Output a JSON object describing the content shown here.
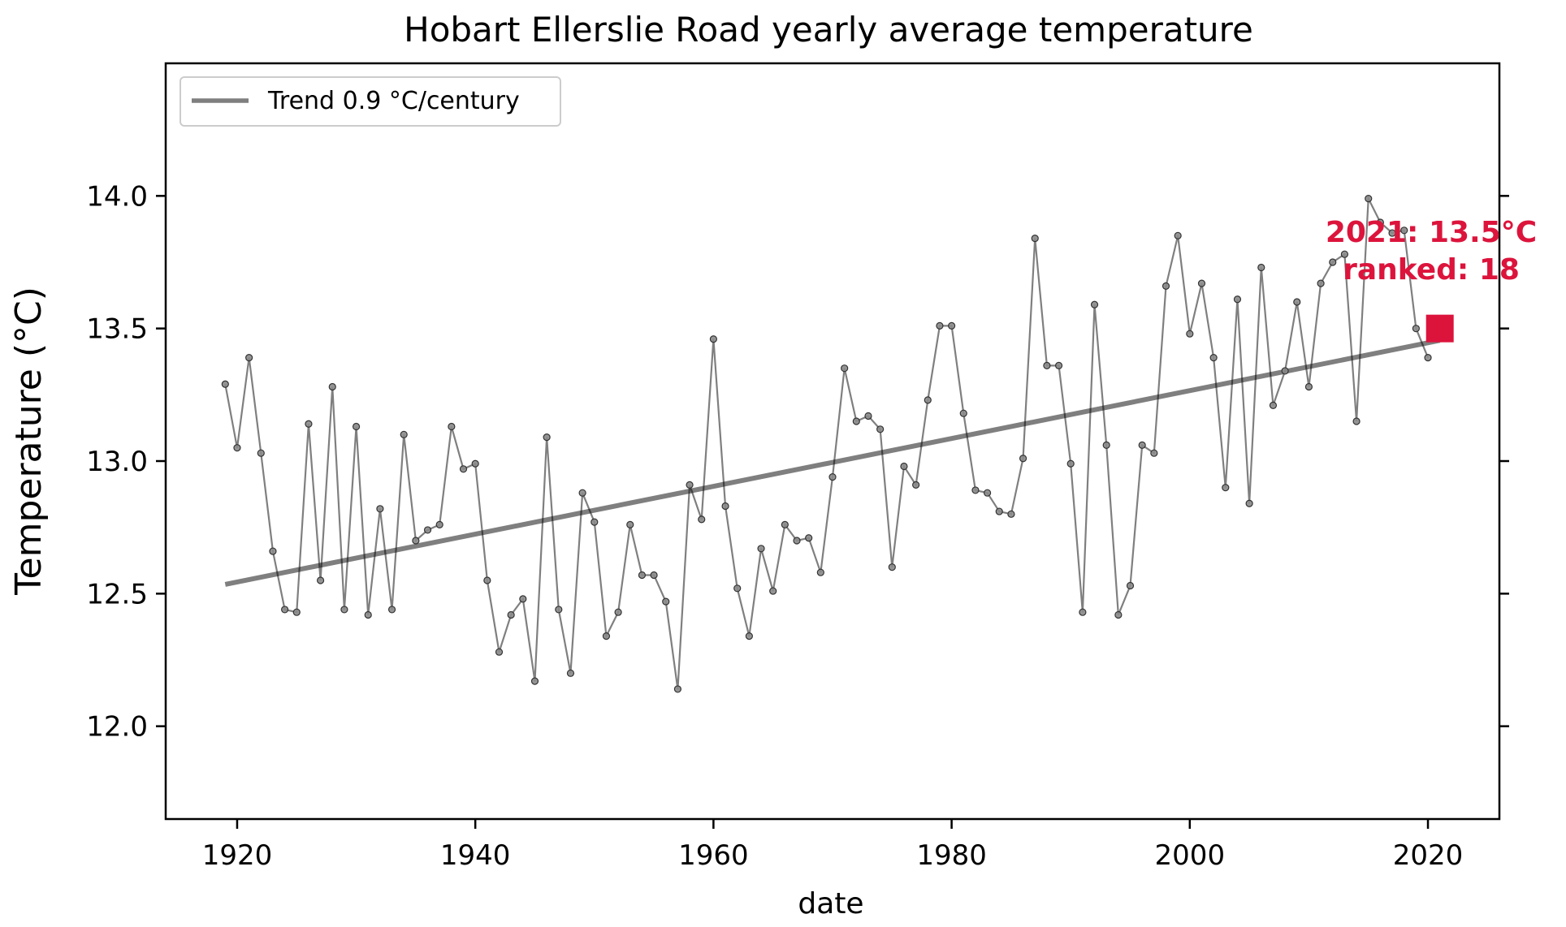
{
  "chart_data": {
    "type": "line",
    "title": "Hobart Ellerslie Road yearly average temperature",
    "xlabel": "date",
    "ylabel": "Temperature (°C)",
    "xlim": [
      1914,
      2026
    ],
    "ylim": [
      11.65,
      14.5
    ],
    "xticks": [
      1920,
      1940,
      1960,
      1980,
      2000,
      2020
    ],
    "yticks": [
      12.0,
      12.5,
      13.0,
      13.5,
      14.0
    ],
    "ytick_labels": [
      "12.0",
      "12.5",
      "13.0",
      "13.5",
      "14.0"
    ],
    "grid": false,
    "legend_position": "top-left",
    "series": [
      {
        "role": "observed",
        "color": "#000000",
        "x": [
          1919,
          1920,
          1921,
          1922,
          1923,
          1924,
          1925,
          1926,
          1927,
          1928,
          1929,
          1930,
          1931,
          1932,
          1933,
          1934,
          1935,
          1936,
          1937,
          1938,
          1939,
          1940,
          1941,
          1942,
          1943,
          1944,
          1945,
          1946,
          1947,
          1948,
          1949,
          1950,
          1951,
          1952,
          1953,
          1954,
          1955,
          1956,
          1957,
          1958,
          1959,
          1960,
          1961,
          1962,
          1963,
          1964,
          1965,
          1966,
          1967,
          1968,
          1969,
          1970,
          1971,
          1972,
          1973,
          1974,
          1975,
          1976,
          1977,
          1978,
          1979,
          1980,
          1981,
          1982,
          1983,
          1984,
          1985,
          1986,
          1987,
          1988,
          1989,
          1990,
          1991,
          1992,
          1993,
          1994,
          1995,
          1996,
          1997,
          1998,
          1999,
          2000,
          2001,
          2002,
          2003,
          2004,
          2005,
          2006,
          2007,
          2008,
          2009,
          2010,
          2011,
          2012,
          2013,
          2014,
          2015,
          2016,
          2017,
          2018,
          2019,
          2020
        ],
        "y": [
          13.29,
          13.05,
          13.39,
          13.03,
          12.66,
          12.44,
          12.43,
          13.14,
          12.55,
          13.28,
          12.44,
          13.13,
          12.42,
          12.82,
          12.44,
          13.1,
          12.7,
          12.74,
          12.76,
          13.13,
          12.97,
          12.99,
          12.55,
          12.28,
          12.42,
          12.48,
          12.17,
          13.09,
          12.44,
          12.2,
          12.88,
          12.77,
          12.34,
          12.43,
          12.76,
          12.57,
          12.57,
          12.47,
          12.14,
          12.91,
          12.78,
          13.46,
          12.83,
          12.52,
          12.34,
          12.67,
          12.51,
          12.76,
          12.7,
          12.71,
          12.58,
          12.94,
          13.35,
          13.15,
          13.17,
          13.12,
          12.6,
          12.98,
          12.91,
          13.23,
          13.51,
          13.51,
          13.18,
          12.89,
          12.88,
          12.81,
          12.8,
          13.01,
          13.84,
          13.36,
          13.36,
          12.99,
          12.43,
          13.59,
          13.06,
          12.42,
          12.53,
          13.06,
          13.03,
          13.66,
          13.85,
          13.48,
          13.67,
          13.39,
          12.9,
          13.61,
          12.84,
          13.73,
          13.21,
          13.34,
          13.6,
          13.28,
          13.67,
          13.75,
          13.78,
          13.15,
          13.99,
          13.9,
          13.86,
          13.87,
          13.5,
          13.39
        ]
      },
      {
        "name": "Trend 0.9 °C/century",
        "role": "trend",
        "color": "#7f7f7f",
        "x": [
          1919,
          2021
        ],
        "y": [
          12.535,
          13.455
        ]
      }
    ],
    "highlight": {
      "x": 2021,
      "y": 13.5,
      "color": "#dc143c",
      "label_line1": "2021: 13.5°C",
      "label_line2": "ranked: 18"
    }
  }
}
